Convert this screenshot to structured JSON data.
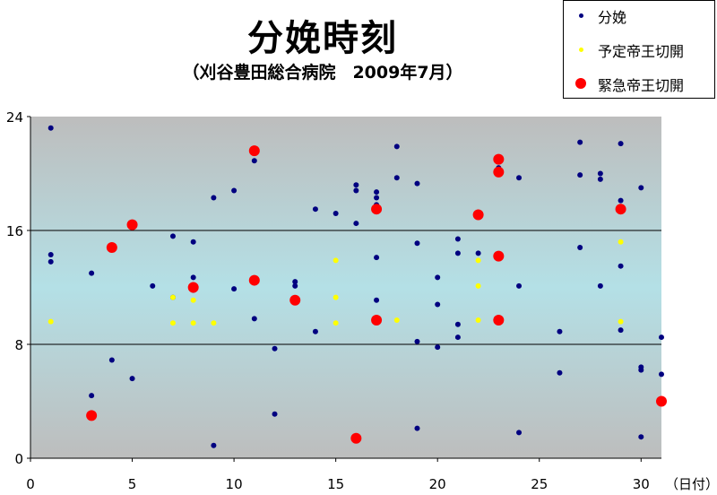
{
  "chart_data": {
    "type": "scatter",
    "title": "分娩時刻",
    "subtitle": "（刈谷豊田総合病院　2009年7月）",
    "xlabel": "（日付）",
    "ylabel": "",
    "xlim": [
      0,
      31
    ],
    "ylim": [
      0,
      24
    ],
    "xticks": [
      0,
      5,
      10,
      15,
      20,
      25,
      30
    ],
    "yticks": [
      0,
      8,
      16,
      24
    ],
    "grid_lines_y": [
      8,
      16
    ],
    "legend_position": "top-right",
    "series": [
      {
        "name": "分娩",
        "color": "#000080",
        "marker_size": 3,
        "points": [
          [
            1,
            23.2
          ],
          [
            1,
            14.3
          ],
          [
            1,
            13.8
          ],
          [
            3,
            13
          ],
          [
            3,
            4.4
          ],
          [
            4,
            6.9
          ],
          [
            5,
            5.6
          ],
          [
            6,
            12.1
          ],
          [
            7,
            15.6
          ],
          [
            7,
            11.3
          ],
          [
            8,
            15.2
          ],
          [
            8,
            12.7
          ],
          [
            8,
            11.8
          ],
          [
            9,
            18.3
          ],
          [
            9,
            0.9
          ],
          [
            10,
            18.8
          ],
          [
            10,
            11.9
          ],
          [
            11,
            20.9
          ],
          [
            11,
            9.8
          ],
          [
            12,
            7.7
          ],
          [
            12,
            3.1
          ],
          [
            13,
            12.4
          ],
          [
            13,
            12.1
          ],
          [
            14,
            17.5
          ],
          [
            14,
            8.9
          ],
          [
            15,
            17.2
          ],
          [
            16,
            19.2
          ],
          [
            16,
            18.8
          ],
          [
            16,
            16.5
          ],
          [
            17,
            18.7
          ],
          [
            17,
            18.3
          ],
          [
            17,
            17.8
          ],
          [
            17,
            14.1
          ],
          [
            17,
            11.1
          ],
          [
            18,
            21.9
          ],
          [
            18,
            19.7
          ],
          [
            19,
            19.3
          ],
          [
            19,
            15.1
          ],
          [
            19,
            8.2
          ],
          [
            19,
            2.1
          ],
          [
            20,
            12.7
          ],
          [
            20,
            10.8
          ],
          [
            20,
            7.8
          ],
          [
            21,
            15.4
          ],
          [
            21,
            14.4
          ],
          [
            21,
            9.4
          ],
          [
            21,
            8.5
          ],
          [
            22,
            14.4
          ],
          [
            23,
            20.9
          ],
          [
            23,
            20.4
          ],
          [
            24,
            19.7
          ],
          [
            24,
            12.1
          ],
          [
            24,
            1.8
          ],
          [
            26,
            8.9
          ],
          [
            26,
            6
          ],
          [
            27,
            22.2
          ],
          [
            27,
            19.9
          ],
          [
            27,
            14.8
          ],
          [
            28,
            20
          ],
          [
            28,
            19.6
          ],
          [
            28,
            12.1
          ],
          [
            29,
            22.1
          ],
          [
            29,
            18.1
          ],
          [
            29,
            13.5
          ],
          [
            29,
            9
          ],
          [
            30,
            19
          ],
          [
            30,
            6.4
          ],
          [
            30,
            6.2
          ],
          [
            30,
            1.5
          ],
          [
            31,
            8.5
          ],
          [
            31,
            5.9
          ]
        ]
      },
      {
        "name": "予定帝王切開",
        "color": "#ffff00",
        "marker_size": 3,
        "points": [
          [
            1,
            9.6
          ],
          [
            7,
            11.3
          ],
          [
            7,
            9.5
          ],
          [
            8,
            11.1
          ],
          [
            8,
            9.5
          ],
          [
            9,
            9.5
          ],
          [
            15,
            13.9
          ],
          [
            15,
            11.3
          ],
          [
            15,
            9.5
          ],
          [
            18,
            9.7
          ],
          [
            22,
            13.9
          ],
          [
            22,
            12.1
          ],
          [
            22,
            9.7
          ],
          [
            29,
            15.2
          ],
          [
            29,
            9.6
          ]
        ]
      },
      {
        "name": "緊急帝王切開",
        "color": "#ff0000",
        "marker_size": 6,
        "points": [
          [
            3,
            3
          ],
          [
            4,
            14.8
          ],
          [
            5,
            16.4
          ],
          [
            8,
            12
          ],
          [
            11,
            21.6
          ],
          [
            11,
            12.5
          ],
          [
            13,
            11.1
          ],
          [
            16,
            1.4
          ],
          [
            17,
            17.5
          ],
          [
            17,
            9.7
          ],
          [
            22,
            17.1
          ],
          [
            23,
            21
          ],
          [
            23,
            20.1
          ],
          [
            23,
            14.2
          ],
          [
            23,
            9.7
          ],
          [
            29,
            17.5
          ],
          [
            31,
            4
          ]
        ]
      }
    ]
  }
}
